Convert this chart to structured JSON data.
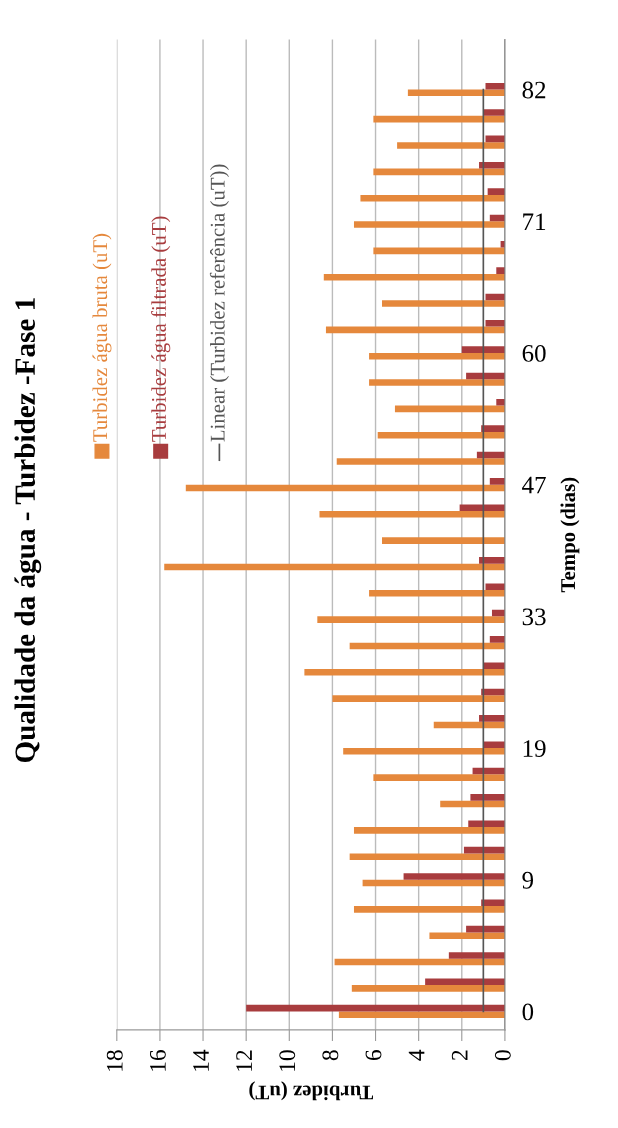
{
  "chart_data": {
    "type": "bar",
    "orientation": "horizontal",
    "title": "Qualidade da água - Turbidez -Fase 1",
    "xlabel": "Turbidez (uT)",
    "ylabel": "Tempo (dias)",
    "categories": [
      "82",
      null,
      null,
      null,
      null,
      "71",
      null,
      null,
      null,
      null,
      "60",
      null,
      null,
      null,
      null,
      "47",
      null,
      null,
      null,
      null,
      "33",
      null,
      null,
      null,
      null,
      "19",
      null,
      null,
      null,
      null,
      "9",
      null,
      null,
      null,
      null,
      "0"
    ],
    "series": [
      {
        "name": "Turbidez água bruta (uT)",
        "color": "#e5883c",
        "values": [
          4.5,
          6.1,
          5.0,
          6.1,
          6.7,
          7.0,
          6.1,
          8.4,
          5.7,
          8.3,
          6.3,
          6.3,
          5.1,
          5.9,
          7.8,
          14.8,
          8.6,
          5.7,
          15.8,
          6.3,
          8.7,
          7.2,
          9.3,
          8.0,
          3.3,
          7.5,
          6.1,
          3.0,
          7.0,
          7.2,
          6.6,
          7.0,
          3.5,
          7.9,
          7.1,
          7.7
        ]
      },
      {
        "name": "Turbidez água filtrada (uT)",
        "color": "#a83c3e",
        "values": [
          0.9,
          1.0,
          0.9,
          1.2,
          0.8,
          0.7,
          0.2,
          0.4,
          0.9,
          0.9,
          2.0,
          1.8,
          0.4,
          1.1,
          1.3,
          0.7,
          2.1,
          0,
          1.2,
          0.9,
          0.6,
          0.7,
          1.0,
          1.1,
          1.2,
          1.0,
          1.5,
          1.6,
          1.7,
          1.9,
          4.7,
          1.1,
          1.8,
          2.6,
          3.7,
          12.0
        ]
      },
      {
        "name": "Linear (Turbidez referência (uT))",
        "type": "line",
        "color": "#555555",
        "values": [
          1,
          1,
          1,
          1,
          1,
          1,
          1,
          1,
          1,
          1,
          1,
          1,
          1,
          1,
          1,
          1,
          1,
          1,
          1,
          1,
          1,
          1,
          1,
          1,
          1,
          1,
          1,
          1,
          1,
          1,
          1,
          1,
          1,
          1,
          1,
          1
        ]
      }
    ],
    "xlim": [
      18,
      0
    ],
    "xticks": [
      0,
      2,
      4,
      6,
      8,
      10,
      12,
      14,
      16,
      18
    ],
    "grid": "x",
    "legend": "top"
  }
}
